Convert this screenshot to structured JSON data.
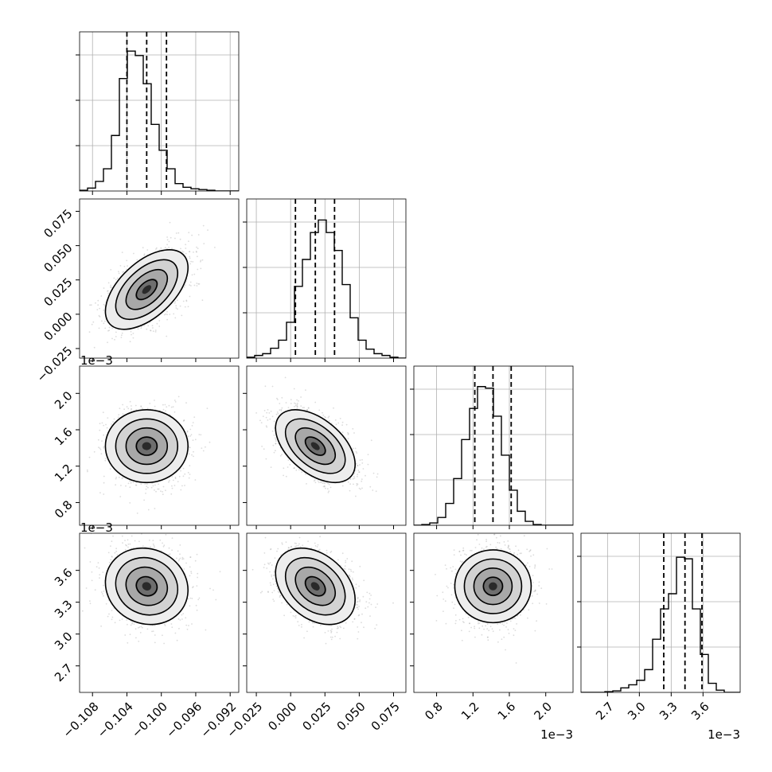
{
  "chart_data": {
    "type": "corner",
    "grid": true,
    "colors": {
      "line": "#000000",
      "grid": "#b0b0b0",
      "points": "#9a9a9a",
      "background": "#ffffff"
    },
    "parameters": [
      {
        "index": 0,
        "range": [
          -0.1095,
          -0.091
        ],
        "ticks": [
          -0.108,
          -0.104,
          -0.1,
          -0.096,
          -0.092
        ],
        "tick_labels": [
          "−0.108",
          "−0.104",
          "−0.100",
          "−0.096",
          "−0.092"
        ],
        "offset_text": ""
      },
      {
        "index": 1,
        "range": [
          -0.032,
          0.084
        ],
        "ticks": [
          -0.025,
          0.0,
          0.025,
          0.05,
          0.075
        ],
        "tick_labels": [
          "−0.025",
          "0.000",
          "0.025",
          "0.050",
          "0.075"
        ],
        "offset_text": ""
      },
      {
        "index": 2,
        "range": [
          0.55,
          2.3
        ],
        "ticks": [
          0.8,
          1.2,
          1.6,
          2.0
        ],
        "tick_labels": [
          "0.8",
          "1.2",
          "1.6",
          "2.0"
        ],
        "offset_text": "1e−3"
      },
      {
        "index": 3,
        "range": [
          2.45,
          3.95
        ],
        "ticks": [
          2.7,
          3.0,
          3.3,
          3.6
        ],
        "tick_labels": [
          "2.7",
          "3.0",
          "3.3",
          "3.6"
        ],
        "offset_text": "1e−3"
      }
    ],
    "marginals": [
      {
        "param": 0,
        "bin_edges_range": [
          -0.1095,
          -0.091
        ],
        "counts": [
          1,
          4,
          13,
          30,
          75,
          152,
          189,
          183,
          145,
          90,
          55,
          30,
          10,
          5,
          3,
          2,
          1,
          0,
          0,
          0
        ],
        "quantiles": [
          -0.104,
          -0.1017,
          -0.0994
        ],
        "hist_max": 200
      },
      {
        "param": 1,
        "bin_edges_range": [
          -0.032,
          0.084
        ],
        "counts": [
          1,
          3,
          5,
          11,
          20,
          40,
          80,
          110,
          140,
          154,
          140,
          120,
          82,
          45,
          20,
          10,
          5,
          3,
          1,
          0
        ],
        "quantiles": [
          0.0035,
          0.018,
          0.032
        ],
        "hist_max": 165
      },
      {
        "param": 2,
        "bin_edges_range": [
          0.55,
          2.3
        ],
        "counts": [
          0,
          1,
          3,
          10,
          28,
          60,
          110,
          150,
          178,
          176,
          140,
          90,
          45,
          18,
          5,
          1,
          0,
          0,
          0,
          0
        ],
        "quantiles": [
          1.22,
          1.42,
          1.62
        ],
        "hist_max": 190
      },
      {
        "param": 3,
        "bin_edges_range": [
          2.45,
          3.95
        ],
        "counts": [
          0,
          0,
          0,
          1,
          2,
          6,
          10,
          16,
          30,
          70,
          110,
          130,
          178,
          176,
          110,
          50,
          12,
          3,
          0,
          0
        ],
        "quantiles": [
          3.23,
          3.43,
          3.59
        ],
        "hist_max": 195
      }
    ],
    "pairs": [
      {
        "row": 1,
        "col": 0,
        "mean": [
          -0.1017,
          0.018
        ],
        "sd": [
          0.0024,
          0.0145
        ],
        "corr": 0.55
      },
      {
        "row": 2,
        "col": 0,
        "mean": [
          -0.1017,
          1.42
        ],
        "sd": [
          0.0024,
          0.2
        ],
        "corr": 0.0
      },
      {
        "row": 2,
        "col": 1,
        "mean": [
          0.018,
          1.42
        ],
        "sd": [
          0.0145,
          0.2
        ],
        "corr": -0.5
      },
      {
        "row": 3,
        "col": 0,
        "mean": [
          -0.1017,
          3.45
        ],
        "sd": [
          0.0024,
          0.18
        ],
        "corr": -0.1
      },
      {
        "row": 3,
        "col": 1,
        "mean": [
          0.018,
          3.45
        ],
        "sd": [
          0.0145,
          0.18
        ],
        "corr": -0.35
      },
      {
        "row": 3,
        "col": 2,
        "mean": [
          1.42,
          3.45
        ],
        "sd": [
          0.2,
          0.18
        ],
        "corr": 0.0
      }
    ]
  }
}
